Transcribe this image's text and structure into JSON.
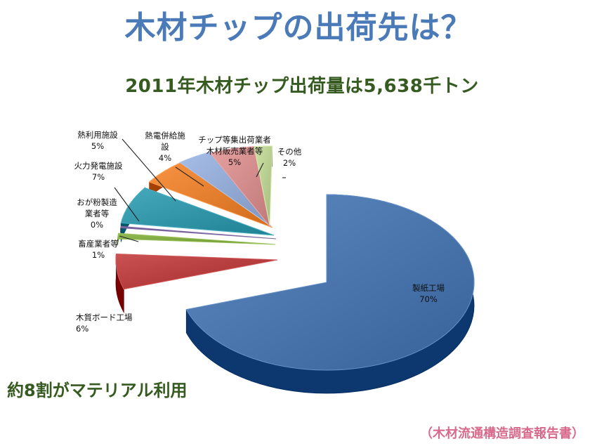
{
  "header": {
    "title": "木材チップの出荷先は？",
    "subtitle": "2011年木材チップ出荷量は5,638千トン"
  },
  "note": "約8割がマテリアル利用",
  "source": "（木材流通構造調査報告書）",
  "chart_data": {
    "type": "pie",
    "title": "2011年木材チップ出荷量は5,638千トン",
    "legend": "none",
    "unit": "%",
    "slices": [
      {
        "label": "製紙工場",
        "value": 70,
        "color": "#4671a9"
      },
      {
        "label": "木質ボード工場",
        "value": 6,
        "color": "#b23a3a"
      },
      {
        "label": "畜産業者等",
        "value": 1,
        "color": "#7aa33c"
      },
      {
        "label": "おが粉製造業者等",
        "value": 0,
        "color": "#5f4a86"
      },
      {
        "label": "火力発電施設",
        "value": 7,
        "color": "#2e91a4"
      },
      {
        "label": "熱利用施設",
        "value": 5,
        "color": "#df7b2a"
      },
      {
        "label": "熱電併給施設",
        "value": 4,
        "color": "#8ea6cf"
      },
      {
        "label": "チップ等集出荷業者木材販売業者等",
        "value": 5,
        "color": "#cf8989"
      },
      {
        "label": "その他",
        "value": 2,
        "color": "#b5cb8e"
      }
    ],
    "label_lines": [
      [
        "製紙工場",
        "70%"
      ],
      [
        "木質ボード工場",
        "6%"
      ],
      [
        "畜産業者等",
        "1%"
      ],
      [
        "おが粉製造",
        "業者等",
        "0%"
      ],
      [
        "火力発電施設",
        "7%"
      ],
      [
        "熱利用施設",
        "5%"
      ],
      [
        "熱電併給施",
        "設",
        "4%"
      ],
      [
        "チップ等集出荷業者",
        "木材販売業者等",
        "5%"
      ],
      [
        "その他",
        "2%"
      ]
    ]
  }
}
